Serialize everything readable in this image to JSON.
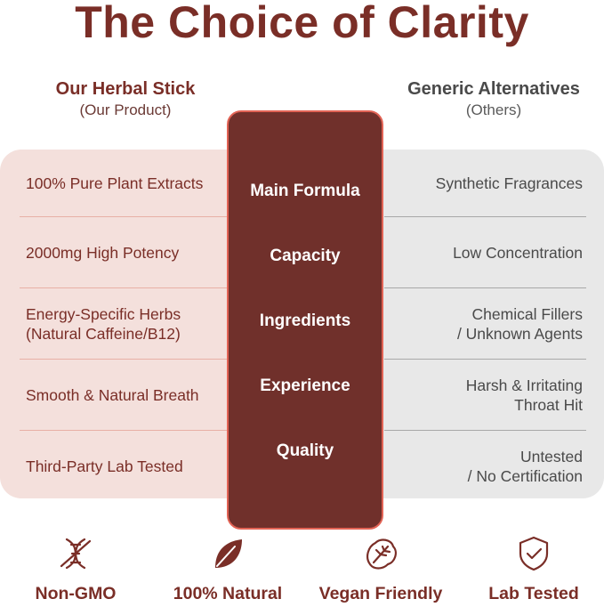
{
  "title": "The Choice of Clarity",
  "left_header": {
    "name": "Our Herbal Stick",
    "sub": "(Our Product)"
  },
  "right_header": {
    "name": "Generic Alternatives",
    "sub": "(Others)"
  },
  "categories": [
    "Main Formula",
    "Capacity",
    "Ingredients",
    "Experience",
    "Quality"
  ],
  "ours": [
    [
      "100% Pure Plant Extracts"
    ],
    [
      "2000mg High Potency"
    ],
    [
      "Energy-Specific Herbs",
      "(Natural Caffeine/B12)"
    ],
    [
      "Smooth & Natural Breath"
    ],
    [
      "Third-Party Lab Tested"
    ]
  ],
  "others": [
    [
      "Synthetic Fragrances"
    ],
    [
      "Low Concentration"
    ],
    [
      "Chemical Fillers",
      "/ Unknown Agents"
    ],
    [
      "Harsh & Irritating",
      "Throat Hit"
    ],
    [
      "Untested",
      "/ No Certification"
    ]
  ],
  "features": [
    {
      "icon": "dna-icon",
      "label": "Non-GMO"
    },
    {
      "icon": "leaf-icon",
      "label": "100% Natural"
    },
    {
      "icon": "vegan-leaf-icon",
      "label": "Vegan Friendly"
    },
    {
      "icon": "shield-check-icon",
      "label": "Lab Tested"
    }
  ],
  "colors": {
    "brand": "#7a2e27",
    "center_fill": "#70302b",
    "center_border": "#e26355",
    "left_panel": "#f4e0dc",
    "right_panel": "#e8e8e8"
  }
}
